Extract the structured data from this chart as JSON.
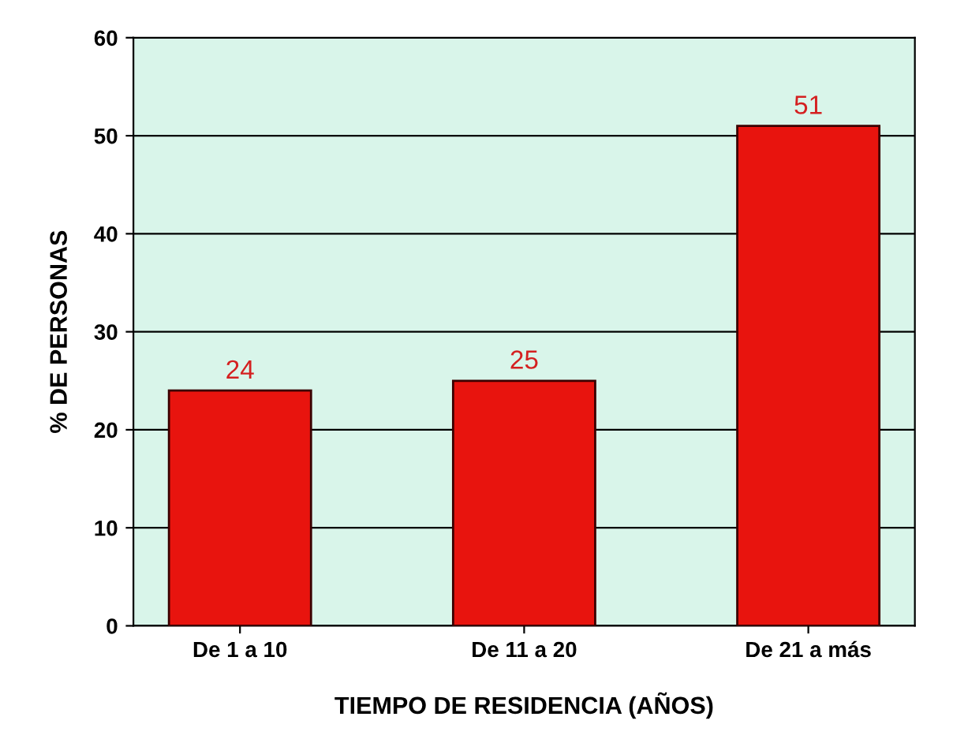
{
  "chart_data": {
    "type": "bar",
    "categories": [
      "De 1 a 10",
      "De 11 a 20",
      "De 21 a más"
    ],
    "values": [
      24,
      25,
      51
    ],
    "color": "#e8140e",
    "xlabel": "TIEMPO DE RESIDENCIA (AÑOS)",
    "ylabel": "% DE PERSONAS",
    "ylim": [
      0,
      60
    ],
    "yticks": [
      0,
      10,
      20,
      30,
      40,
      50,
      60
    ],
    "grid": "y",
    "data_labels": true
  }
}
